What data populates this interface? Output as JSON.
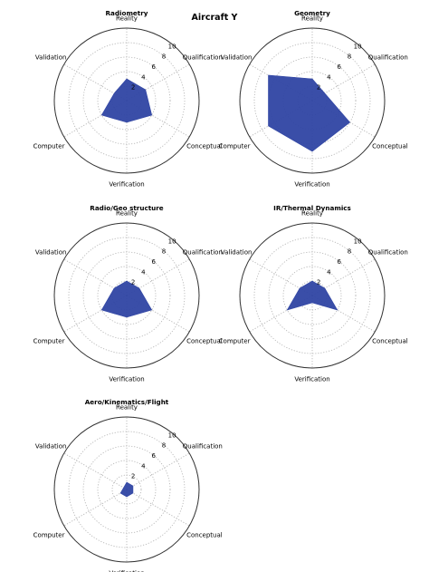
{
  "figure": {
    "title": "Aircraft Y"
  },
  "chart_data": [
    {
      "type": "radar",
      "title": "Radiometry",
      "categories": [
        "Reality",
        "Qualification",
        "Conceptual",
        "Verification",
        "Computer",
        "Validation"
      ],
      "values": [
        3,
        3,
        4,
        3,
        4,
        2
      ],
      "rticks": [
        2,
        4,
        6,
        8,
        10
      ],
      "rlim": [
        0,
        10
      ],
      "grid": true,
      "fill_color": "#2f44a3"
    },
    {
      "type": "radar",
      "title": "Geometry",
      "categories": [
        "Reality",
        "Qualification",
        "Conceptual",
        "Verification",
        "Computer",
        "Validation"
      ],
      "values": [
        3,
        2,
        6,
        7,
        7,
        7
      ],
      "rticks": [
        2,
        4,
        6,
        8,
        10
      ],
      "rlim": [
        0,
        10
      ],
      "grid": true,
      "fill_color": "#2f44a3"
    },
    {
      "type": "radar",
      "title": "Radio/Geo structure",
      "categories": [
        "Reality",
        "Qualification",
        "Conceptual",
        "Verification",
        "Computer",
        "Validation"
      ],
      "values": [
        2,
        2,
        4,
        3,
        4,
        2
      ],
      "rticks": [
        2,
        4,
        6,
        8,
        10
      ],
      "rlim": [
        0,
        10
      ],
      "grid": true,
      "fill_color": "#2f44a3"
    },
    {
      "type": "radar",
      "title": "IR/Thermal Dynamics",
      "categories": [
        "Reality",
        "Qualification",
        "Conceptual",
        "Verification",
        "Computer",
        "Validation"
      ],
      "values": [
        2,
        2,
        4,
        1,
        4,
        2
      ],
      "rticks": [
        2,
        4,
        6,
        8,
        10
      ],
      "rlim": [
        0,
        10
      ],
      "grid": true,
      "fill_color": "#2f44a3"
    },
    {
      "type": "radar",
      "title": "Aero/Kinematics/Flight",
      "categories": [
        "Reality",
        "Qualification",
        "Conceptual",
        "Verification",
        "Computer",
        "Validation"
      ],
      "values": [
        1,
        1,
        1,
        1,
        1,
        0.5
      ],
      "rticks": [
        2,
        4,
        6,
        8,
        10
      ],
      "rlim": [
        0,
        10
      ],
      "grid": true,
      "fill_color": "#2f44a3"
    }
  ]
}
